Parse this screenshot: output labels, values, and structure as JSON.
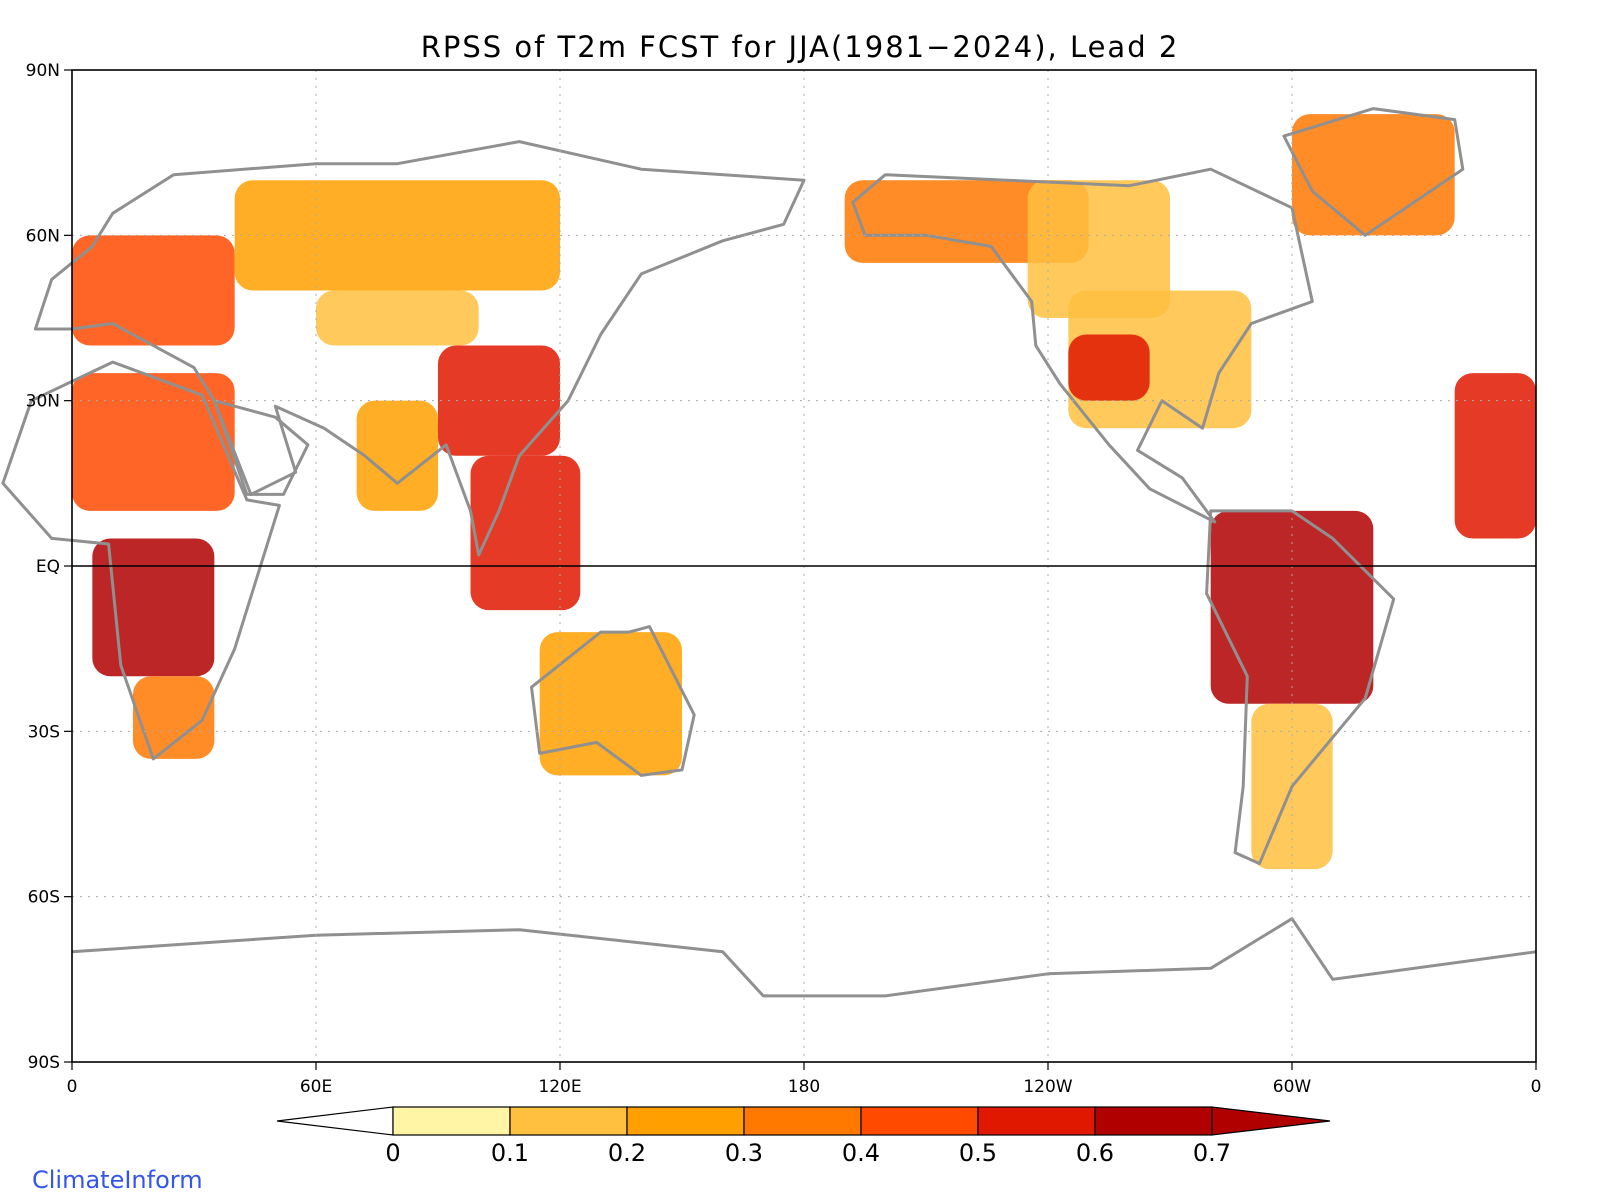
{
  "title": "RPSS of T2m FCST for JJA(1981−2024), Lead 2",
  "credit": "ClimateInform",
  "map": {
    "projection": "equirectangular",
    "lon_range": [
      0,
      360
    ],
    "lat_range": [
      -90,
      90
    ],
    "y_ticks": [
      {
        "lat": 90,
        "label": "90N"
      },
      {
        "lat": 60,
        "label": "60N"
      },
      {
        "lat": 30,
        "label": "30N"
      },
      {
        "lat": 0,
        "label": "EQ"
      },
      {
        "lat": -30,
        "label": "30S"
      },
      {
        "lat": -60,
        "label": "60S"
      },
      {
        "lat": -90,
        "label": "90S"
      }
    ],
    "x_ticks": [
      {
        "lon": 0,
        "label": "0"
      },
      {
        "lon": 60,
        "label": "60E"
      },
      {
        "lon": 120,
        "label": "120E"
      },
      {
        "lon": 180,
        "label": "180"
      },
      {
        "lon": 240,
        "label": "120W"
      },
      {
        "lon": 300,
        "label": "60W"
      },
      {
        "lon": 360,
        "label": "0"
      }
    ],
    "grid": "dotted",
    "equator_line": true
  },
  "colorbar": {
    "boundaries": [
      "0",
      "0.1",
      "0.2",
      "0.3",
      "0.4",
      "0.5",
      "0.6",
      "0.7"
    ],
    "colors": [
      "#fff5a5",
      "#ffc040",
      "#ffa000",
      "#ff7800",
      "#ff4a00",
      "#e01800",
      "#b00000"
    ],
    "under_color": "#ffffff",
    "over_color": "#b00000",
    "extend": "both"
  },
  "chart_data": {
    "type": "heatmap",
    "title": "RPSS of T2m FCST for JJA(1981−2024), Lead 2",
    "variable": "RPSS",
    "scale": [
      0,
      0.7
    ],
    "regions": [
      {
        "lon": [
          5,
          35
        ],
        "lat": [
          -20,
          5
        ],
        "level": 6
      },
      {
        "lon": [
          0,
          40
        ],
        "lat": [
          10,
          35
        ],
        "level": 4
      },
      {
        "lon": [
          15,
          35
        ],
        "lat": [
          -35,
          -20
        ],
        "level": 3
      },
      {
        "lon": [
          0,
          40
        ],
        "lat": [
          40,
          60
        ],
        "level": 4
      },
      {
        "lon": [
          40,
          120
        ],
        "lat": [
          50,
          70
        ],
        "level": 2
      },
      {
        "lon": [
          60,
          100
        ],
        "lat": [
          40,
          50
        ],
        "level": 1
      },
      {
        "lon": [
          90,
          120
        ],
        "lat": [
          20,
          40
        ],
        "level": 5
      },
      {
        "lon": [
          70,
          90
        ],
        "lat": [
          10,
          30
        ],
        "level": 2
      },
      {
        "lon": [
          98,
          125
        ],
        "lat": [
          -8,
          20
        ],
        "level": 5
      },
      {
        "lon": [
          115,
          150
        ],
        "lat": [
          -38,
          -12
        ],
        "level": 2
      },
      {
        "lon": [
          190,
          250
        ],
        "lat": [
          55,
          70
        ],
        "level": 3
      },
      {
        "lon": [
          235,
          270
        ],
        "lat": [
          45,
          70
        ],
        "level": 1
      },
      {
        "lon": [
          245,
          290
        ],
        "lat": [
          25,
          50
        ],
        "level": 1
      },
      {
        "lon": [
          245,
          265
        ],
        "lat": [
          30,
          42
        ],
        "level": 5
      },
      {
        "lon": [
          300,
          340
        ],
        "lat": [
          60,
          82
        ],
        "level": 3
      },
      {
        "lon": [
          280,
          320
        ],
        "lat": [
          -25,
          10
        ],
        "level": 6
      },
      {
        "lon": [
          290,
          310
        ],
        "lat": [
          -55,
          -25
        ],
        "level": 1
      },
      {
        "lon": [
          340,
          360
        ],
        "lat": [
          5,
          35
        ],
        "level": 5
      }
    ]
  }
}
